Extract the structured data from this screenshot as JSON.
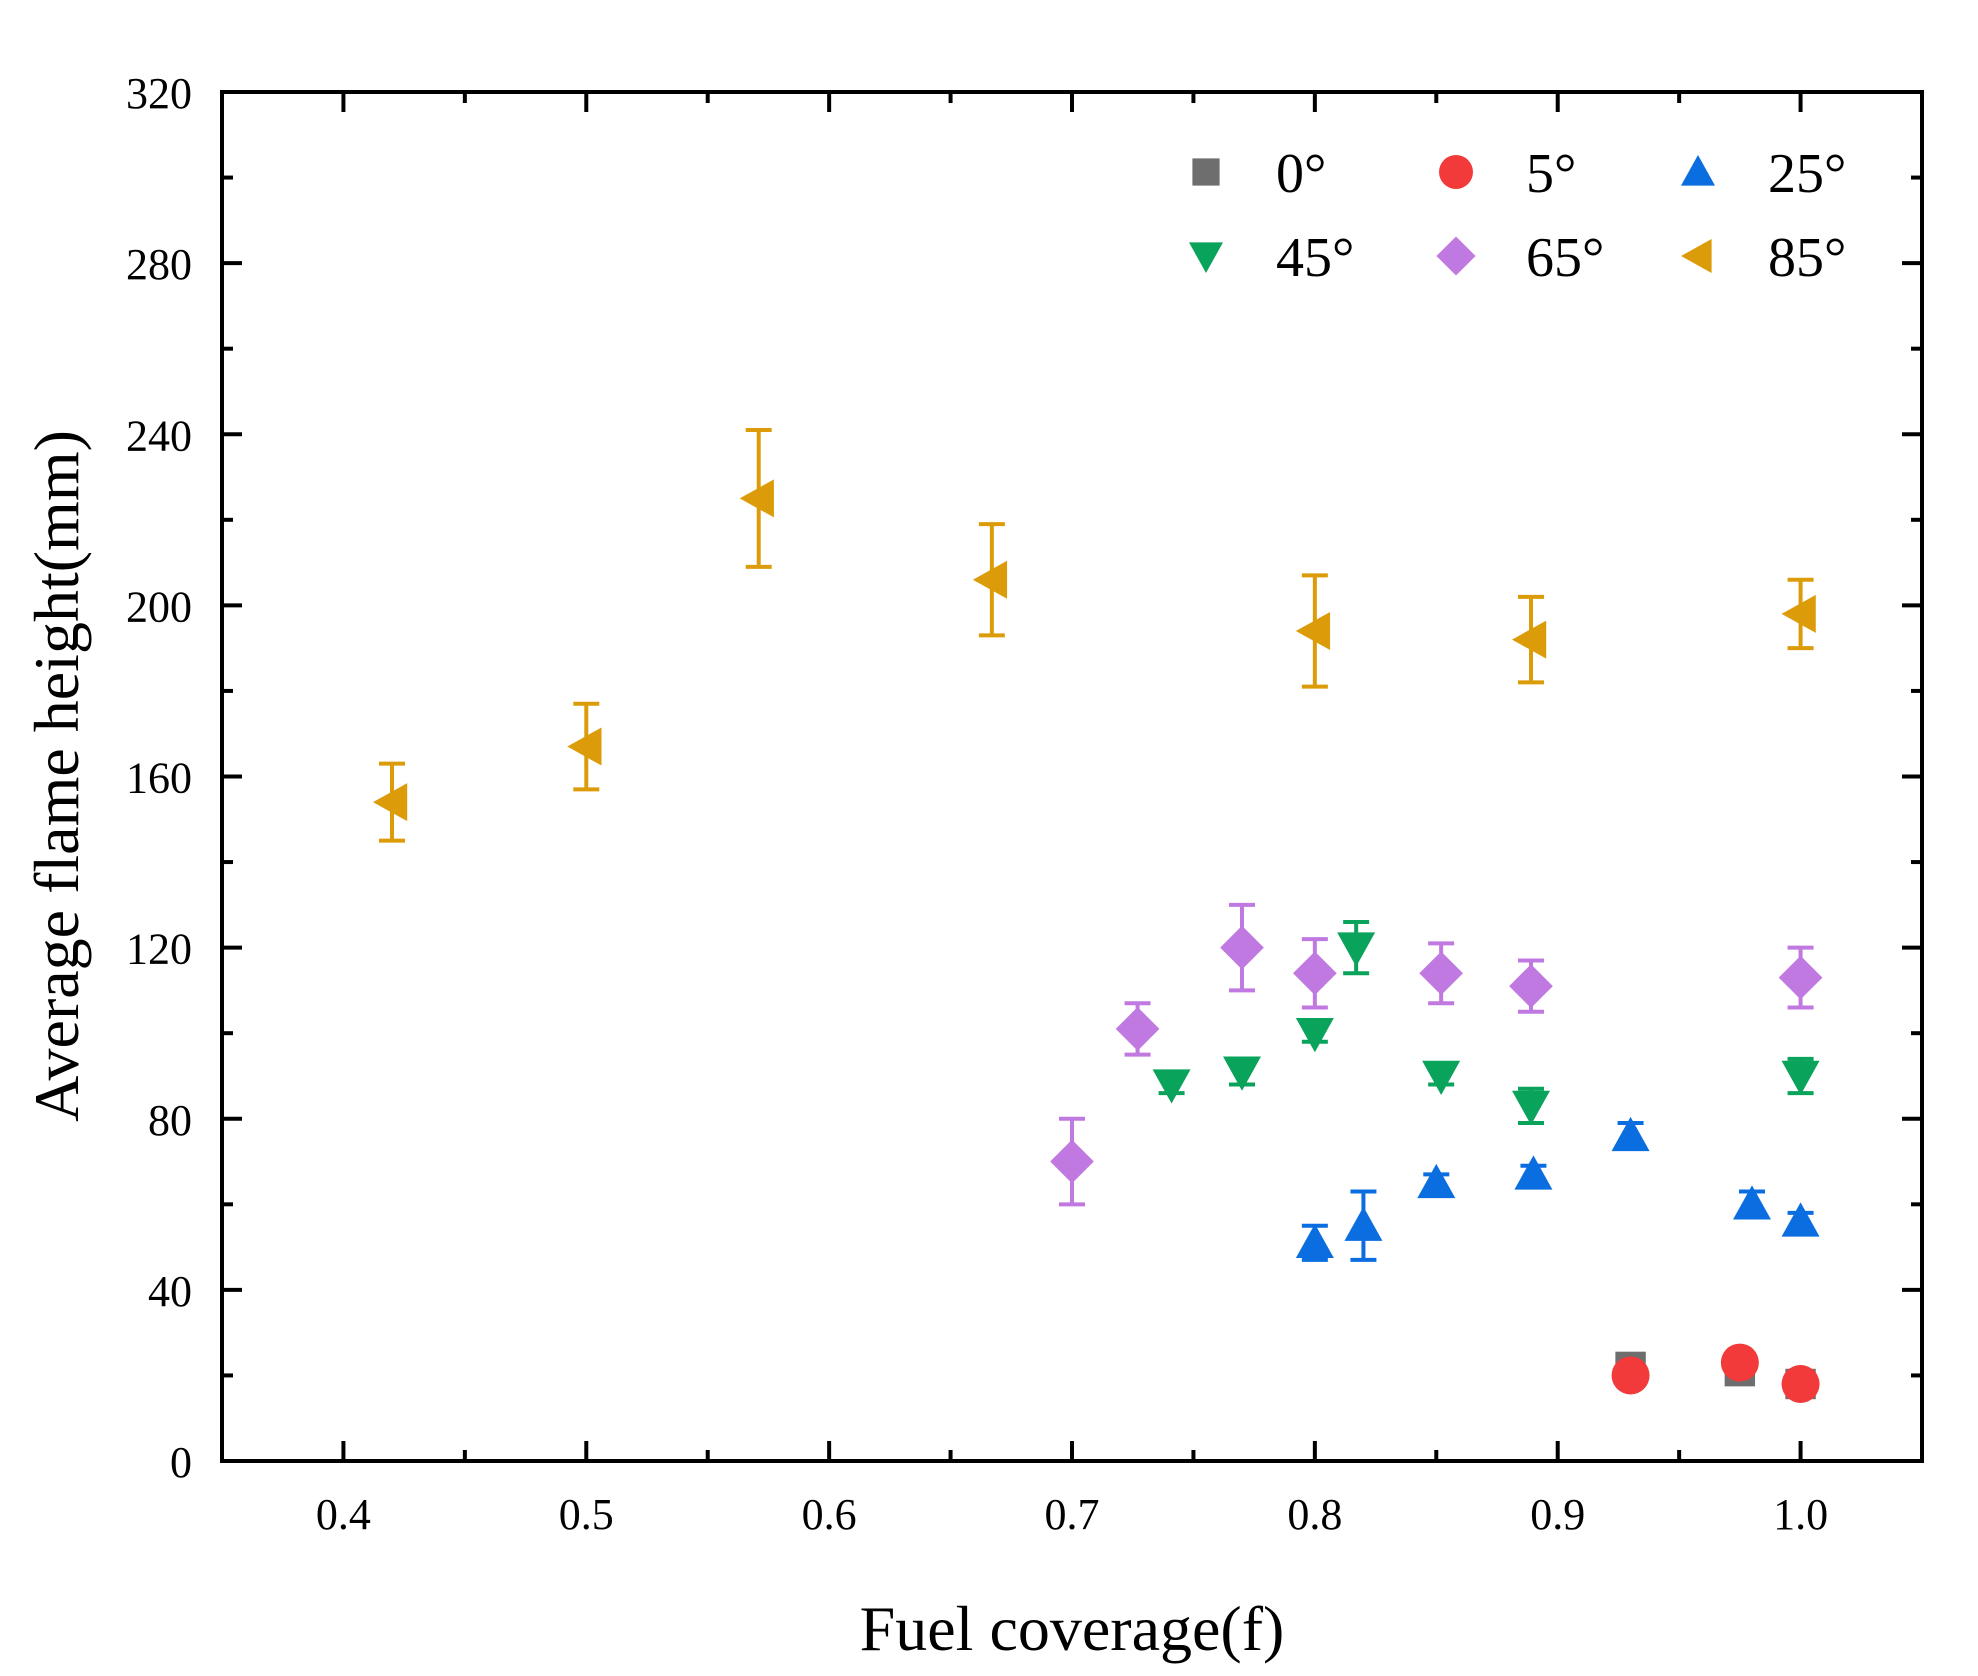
{
  "chart_data": {
    "type": "scatter",
    "title": "",
    "xlabel": "Fuel coverage(f)",
    "ylabel": "Average flame height(mm)",
    "xlim": [
      0.35,
      1.05
    ],
    "ylim": [
      0,
      320
    ],
    "x_ticks": [
      0.4,
      0.5,
      0.6,
      0.7,
      0.8,
      0.9,
      1.0
    ],
    "x_tick_labels": [
      "0.4",
      "0.5",
      "0.6",
      "0.7",
      "0.8",
      "0.9",
      "1.0"
    ],
    "y_ticks": [
      0,
      40,
      80,
      120,
      160,
      200,
      240,
      280,
      320
    ],
    "y_tick_labels": [
      "0",
      "40",
      "80",
      "120",
      "160",
      "200",
      "240",
      "280",
      "320"
    ],
    "grid": false,
    "legend_position": "top-right",
    "series": [
      {
        "name": "0°",
        "marker": "square",
        "color": "#6e6e6e",
        "points": [
          {
            "x": 0.93,
            "y": 22,
            "err": 1
          },
          {
            "x": 0.975,
            "y": 21,
            "err": 1
          },
          {
            "x": 1.0,
            "y": 18,
            "err": 1
          }
        ]
      },
      {
        "name": "5°",
        "marker": "circle",
        "color": "#f23a3a",
        "points": [
          {
            "x": 0.93,
            "y": 20,
            "err": 1
          },
          {
            "x": 0.975,
            "y": 23,
            "err": 1
          },
          {
            "x": 1.0,
            "y": 18,
            "err": 1
          }
        ]
      },
      {
        "name": "25°",
        "marker": "triangle-up",
        "color": "#0a6ee0",
        "points": [
          {
            "x": 0.8,
            "y": 51,
            "err": 4
          },
          {
            "x": 0.82,
            "y": 55,
            "err": 8
          },
          {
            "x": 0.85,
            "y": 65,
            "err": 2
          },
          {
            "x": 0.89,
            "y": 67,
            "err": 2
          },
          {
            "x": 0.93,
            "y": 76,
            "err": 3
          },
          {
            "x": 0.98,
            "y": 60,
            "err": 3
          },
          {
            "x": 1.0,
            "y": 56,
            "err": 2
          }
        ]
      },
      {
        "name": "45°",
        "marker": "triangle-down",
        "color": "#0aa35b",
        "points": [
          {
            "x": 0.741,
            "y": 88,
            "err": 2
          },
          {
            "x": 0.77,
            "y": 91,
            "err": 3
          },
          {
            "x": 0.8,
            "y": 100,
            "err": 2
          },
          {
            "x": 0.817,
            "y": 120,
            "err": 6
          },
          {
            "x": 0.852,
            "y": 90,
            "err": 2
          },
          {
            "x": 0.889,
            "y": 83,
            "err": 4
          },
          {
            "x": 1.0,
            "y": 90,
            "err": 4
          }
        ]
      },
      {
        "name": "65°",
        "marker": "diamond",
        "color": "#c079e0",
        "points": [
          {
            "x": 0.7,
            "y": 70,
            "err": 10
          },
          {
            "x": 0.727,
            "y": 101,
            "err": 6
          },
          {
            "x": 0.77,
            "y": 120,
            "err": 10
          },
          {
            "x": 0.8,
            "y": 114,
            "err": 8
          },
          {
            "x": 0.852,
            "y": 114,
            "err": 7
          },
          {
            "x": 0.889,
            "y": 111,
            "err": 6
          },
          {
            "x": 1.0,
            "y": 113,
            "err": 7
          }
        ]
      },
      {
        "name": "85°",
        "marker": "triangle-left",
        "color": "#dc9c09",
        "points": [
          {
            "x": 0.42,
            "y": 154,
            "err": 9
          },
          {
            "x": 0.5,
            "y": 167,
            "err": 10
          },
          {
            "x": 0.571,
            "y": 225,
            "err": 16
          },
          {
            "x": 0.667,
            "y": 206,
            "err": 13
          },
          {
            "x": 0.8,
            "y": 194,
            "err": 13
          },
          {
            "x": 0.889,
            "y": 192,
            "err": 10
          },
          {
            "x": 1.0,
            "y": 198,
            "err": 8
          }
        ]
      }
    ]
  }
}
